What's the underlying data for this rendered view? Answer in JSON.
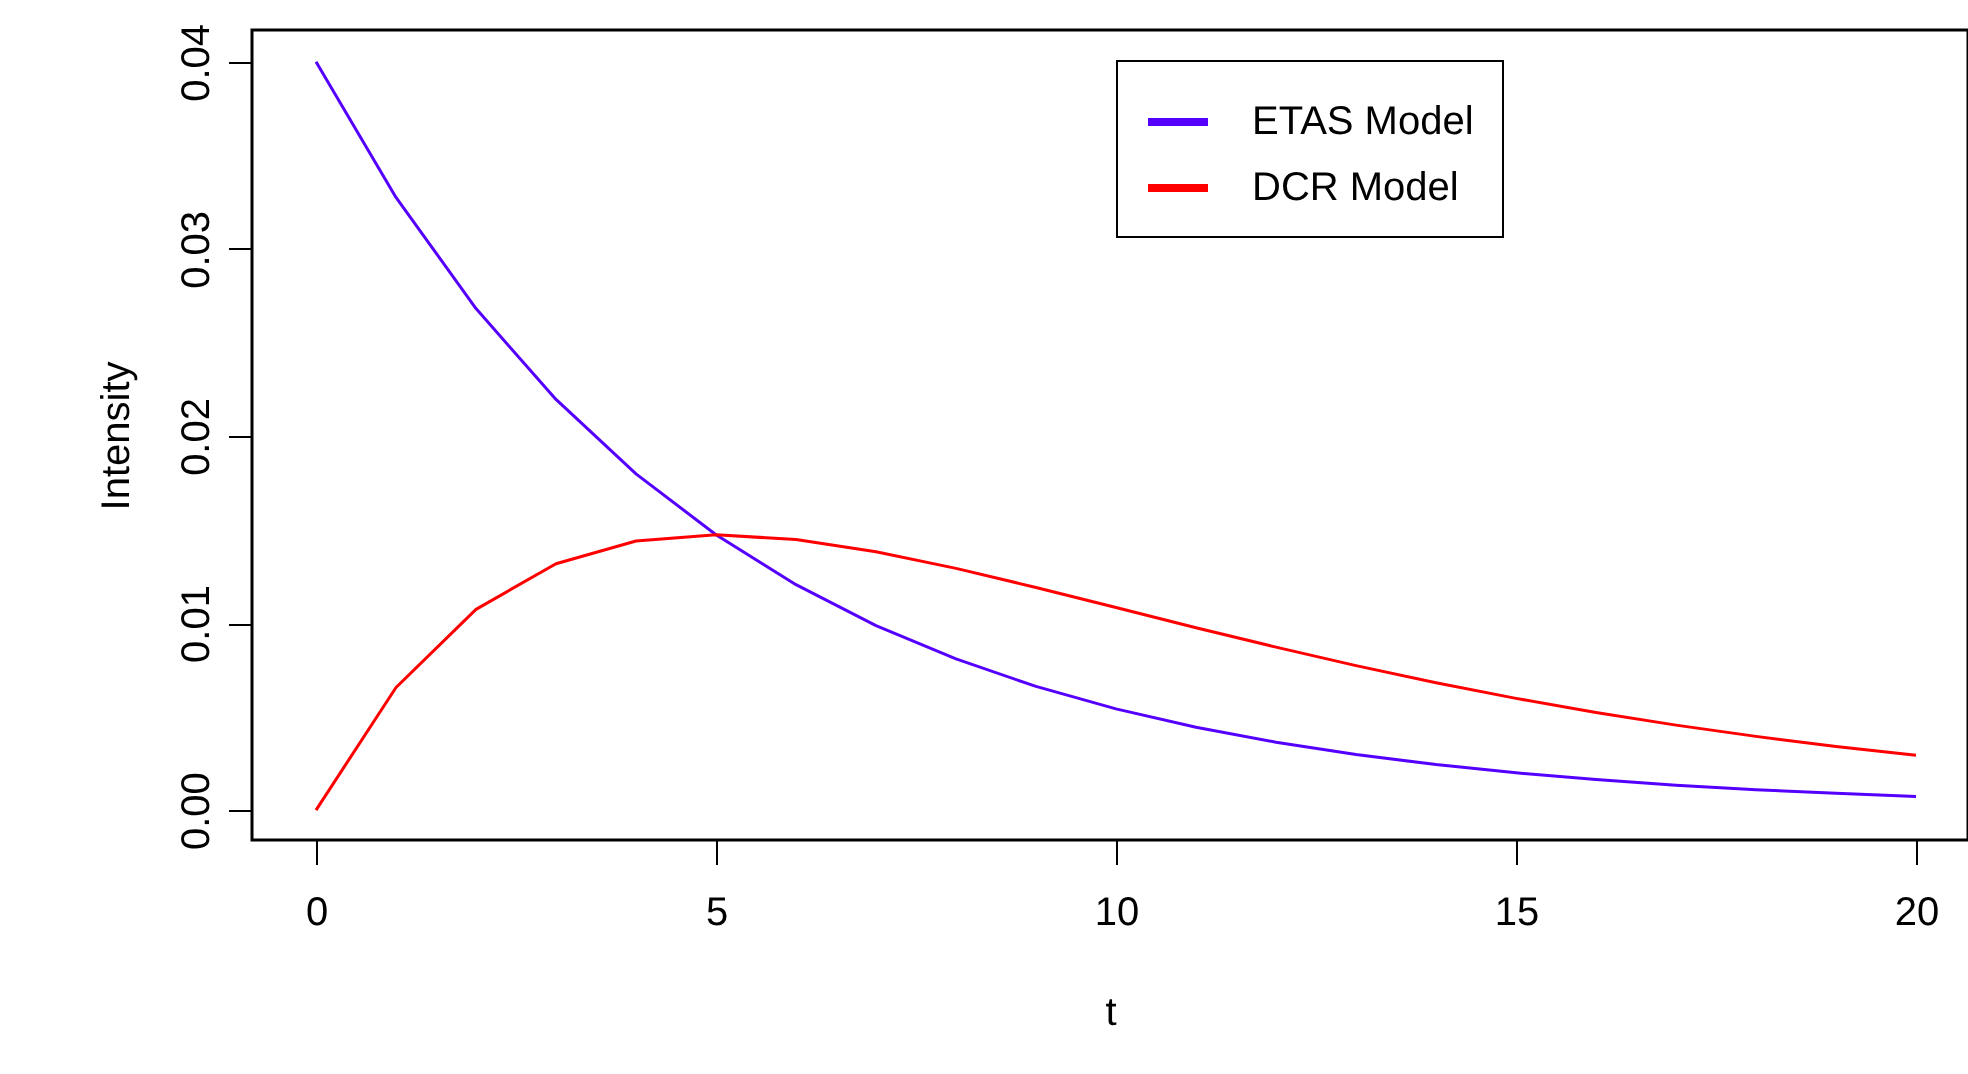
{
  "chart_data": {
    "type": "line",
    "xlabel": "t",
    "ylabel": "Intensity",
    "x": [
      0,
      1,
      2,
      3,
      4,
      5,
      6,
      7,
      8,
      9,
      10,
      11,
      12,
      13,
      14,
      15,
      16,
      17,
      18,
      19,
      20
    ],
    "series": [
      {
        "name": "ETAS Model",
        "color": "#5500ff",
        "values": [
          0.04,
          0.03275,
          0.02681,
          0.02195,
          0.01797,
          0.01472,
          0.01205,
          0.00986,
          0.00808,
          0.00661,
          0.00541,
          0.00443,
          0.00363,
          0.00297,
          0.00243,
          0.00199,
          0.00163,
          0.00133,
          0.00109,
          0.0009,
          0.00073
        ]
      },
      {
        "name": "DCR Model",
        "color": "#ff0000",
        "values": [
          0,
          0.00655,
          0.01073,
          0.01317,
          0.01438,
          0.01472,
          0.01446,
          0.01381,
          0.01292,
          0.0119,
          0.01083,
          0.00975,
          0.00871,
          0.00772,
          0.00681,
          0.00597,
          0.00522,
          0.00454,
          0.00394,
          0.0034,
          0.00293
        ]
      }
    ],
    "xlim": [
      -0.8,
      20.65
    ],
    "xticks": [
      0,
      5,
      10,
      15,
      20
    ],
    "ylim": [
      -0.0016,
      0.0417
    ],
    "yticks": [
      {
        "value": 0,
        "label": "0.00"
      },
      {
        "value": 0.01,
        "label": "0.01"
      },
      {
        "value": 0.02,
        "label": "0.02"
      },
      {
        "value": 0.03,
        "label": "0.03"
      },
      {
        "value": 0.04,
        "label": "0.04"
      }
    ],
    "grid": false,
    "legend": "top right",
    "line_style": "solid",
    "marker": "none"
  }
}
